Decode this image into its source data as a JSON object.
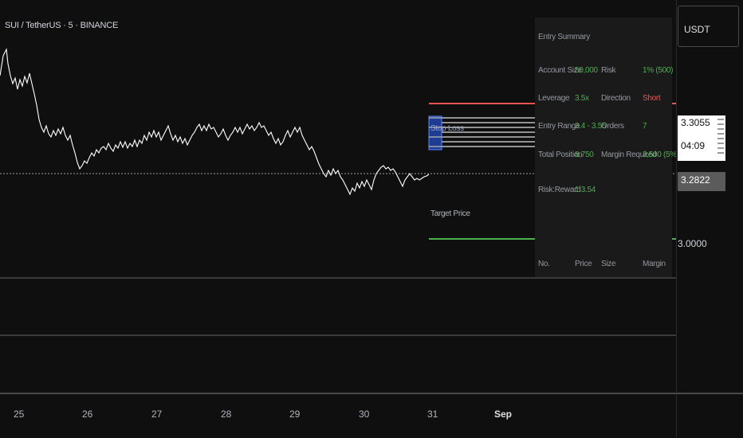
{
  "symbol": {
    "title": "SUI / TetherUS · 5 · BINANCE"
  },
  "price_scale": {
    "currency": "USDT",
    "stop_price": "3.3055",
    "timer": "04:09",
    "current_price": "3.2822",
    "target_price": "3.0000"
  },
  "time_axis": {
    "labels": [
      "25",
      "26",
      "27",
      "28",
      "29",
      "30",
      "31",
      "Sep"
    ]
  },
  "chart_labels": {
    "stop_loss": "Stop Loss",
    "target_price": "Target Price"
  },
  "summary": {
    "title": "Entry Summary",
    "account_size_label": "Account Size",
    "account_size_value": "50,000",
    "risk_label": "Risk",
    "risk_value": "1% (500)",
    "leverage_label": "Leverage",
    "leverage_value": "3.5x",
    "direction_label": "Direction",
    "direction_value": "Short",
    "entry_range_label": "Entry Range",
    "entry_range_value": "3.4 - 3.55",
    "orders_label": "Orders",
    "orders_value": "7",
    "total_position_label": "Total Position",
    "total_position_value": "8,750",
    "margin_required_label": "Margin Required",
    "margin_required_value": "2,500 (5%)",
    "risk_reward_label": "Risk:Reward",
    "risk_reward_value": "1:3.54",
    "columns": [
      "No.",
      "Price",
      "Size",
      "Margin"
    ]
  },
  "colors": {
    "background": "#0f0f0f",
    "stop_line": "#ef5350",
    "target_line": "#4caf50",
    "price_line": "#ffffff",
    "entry_box": "#2962ff"
  }
}
